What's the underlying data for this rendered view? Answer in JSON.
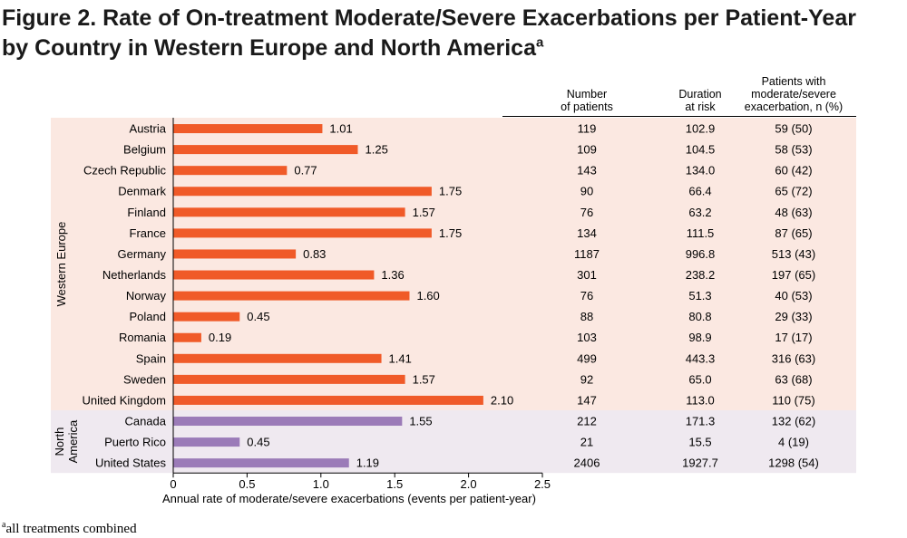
{
  "title": {
    "line1": "Figure 2. Rate of On-treatment Moderate/Severe Exacerbations per Patient-Year",
    "line2": "by Country in Western Europe and North America",
    "superscript": "a"
  },
  "footnote": {
    "marker": "a",
    "text": "all treatments combined"
  },
  "table_headers": {
    "patients": [
      "Number",
      "of patients"
    ],
    "duration": [
      "Duration",
      "at risk"
    ],
    "exacerbation": [
      "Patients with",
      "moderate/severe",
      "exacerbation, n (%)"
    ]
  },
  "colors": {
    "western_europe_bar": "#f05a28",
    "north_america_bar": "#9b7bb8",
    "western_europe_bg": "#fbe8e1",
    "north_america_bg": "#efe9f0"
  },
  "chart_data": {
    "type": "bar",
    "orientation": "horizontal",
    "xlabel": "Annual rate of moderate/severe exacerbations (events per patient-year)",
    "xlim": [
      0,
      2.5
    ],
    "xticks": [
      "0",
      "0.5",
      "1.0",
      "1.5",
      "2.0",
      "2.5"
    ],
    "groups": [
      {
        "name": "Western Europe",
        "rows": [
          {
            "country": "Austria",
            "rate": 1.01,
            "label": "1.01",
            "patients": "119",
            "duration": "102.9",
            "exacerbation": "59 (50)"
          },
          {
            "country": "Belgium",
            "rate": 1.25,
            "label": "1.25",
            "patients": "109",
            "duration": "104.5",
            "exacerbation": "58 (53)"
          },
          {
            "country": "Czech Republic",
            "rate": 0.77,
            "label": "0.77",
            "patients": "143",
            "duration": "134.0",
            "exacerbation": "60 (42)"
          },
          {
            "country": "Denmark",
            "rate": 1.75,
            "label": "1.75",
            "patients": "90",
            "duration": "66.4",
            "exacerbation": "65 (72)"
          },
          {
            "country": "Finland",
            "rate": 1.57,
            "label": "1.57",
            "patients": "76",
            "duration": "63.2",
            "exacerbation": "48 (63)"
          },
          {
            "country": "France",
            "rate": 1.75,
            "label": "1.75",
            "patients": "134",
            "duration": "111.5",
            "exacerbation": "87 (65)"
          },
          {
            "country": "Germany",
            "rate": 0.83,
            "label": "0.83",
            "patients": "1187",
            "duration": "996.8",
            "exacerbation": "513 (43)"
          },
          {
            "country": "Netherlands",
            "rate": 1.36,
            "label": "1.36",
            "patients": "301",
            "duration": "238.2",
            "exacerbation": "197 (65)"
          },
          {
            "country": "Norway",
            "rate": 1.6,
            "label": "1.60",
            "patients": "76",
            "duration": "51.3",
            "exacerbation": "40 (53)"
          },
          {
            "country": "Poland",
            "rate": 0.45,
            "label": "0.45",
            "patients": "88",
            "duration": "80.8",
            "exacerbation": "29 (33)"
          },
          {
            "country": "Romania",
            "rate": 0.19,
            "label": "0.19",
            "patients": "103",
            "duration": "98.9",
            "exacerbation": "17 (17)"
          },
          {
            "country": "Spain",
            "rate": 1.41,
            "label": "1.41",
            "patients": "499",
            "duration": "443.3",
            "exacerbation": "316 (63)"
          },
          {
            "country": "Sweden",
            "rate": 1.57,
            "label": "1.57",
            "patients": "92",
            "duration": "65.0",
            "exacerbation": "63 (68)"
          },
          {
            "country": "United Kingdom",
            "rate": 2.1,
            "label": "2.10",
            "patients": "147",
            "duration": "113.0",
            "exacerbation": "110 (75)"
          }
        ]
      },
      {
        "name": "North America",
        "label_lines": [
          "North",
          "America"
        ],
        "rows": [
          {
            "country": "Canada",
            "rate": 1.55,
            "label": "1.55",
            "patients": "212",
            "duration": "171.3",
            "exacerbation": "132 (62)"
          },
          {
            "country": "Puerto Rico",
            "rate": 0.45,
            "label": "0.45",
            "patients": "21",
            "duration": "15.5",
            "exacerbation": "4 (19)"
          },
          {
            "country": "United States",
            "rate": 1.19,
            "label": "1.19",
            "patients": "2406",
            "duration": "1927.7",
            "exacerbation": "1298 (54)"
          }
        ]
      }
    ]
  }
}
